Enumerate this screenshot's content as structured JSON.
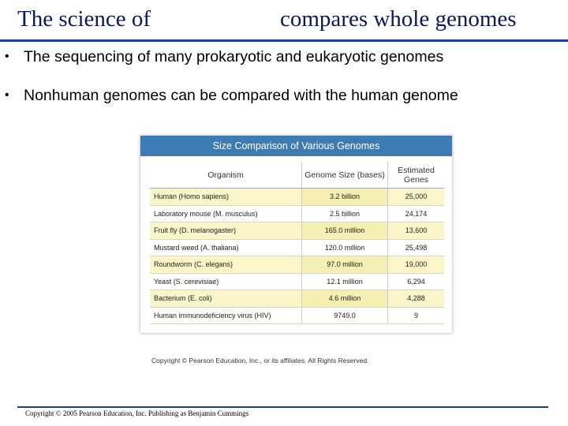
{
  "slide": {
    "title_left": "The science of",
    "title_right": "compares whole genomes",
    "bullets": [
      "The sequencing of many prokaryotic and eukaryotic genomes",
      "Nonhuman genomes can be compared with the human genome"
    ],
    "footer": "Copyright © 2005 Pearson Education, Inc. Publishing as Benjamin Cummings"
  },
  "figure": {
    "title": "Size Comparison of Various Genomes",
    "columns": [
      "Organism",
      "Genome Size (bases)",
      "Estimated Genes"
    ],
    "rows": [
      {
        "organism": "Human (Homo sapiens)",
        "size": "3.2 billion",
        "genes": "25,000"
      },
      {
        "organism": "Laboratory mouse (M. musculus)",
        "size": "2.5 billion",
        "genes": "24,174"
      },
      {
        "organism": "Fruit fly (D. melanogaster)",
        "size": "165.0 million",
        "genes": "13,600"
      },
      {
        "organism": "Mustard weed (A. thaliana)",
        "size": "120.0 million",
        "genes": "25,498"
      },
      {
        "organism": "Roundworm (C. elegans)",
        "size": "97.0 million",
        "genes": "19,000"
      },
      {
        "organism": "Yeast (S. cerevisiae)",
        "size": "12.1 million",
        "genes": "6,294"
      },
      {
        "organism": "Bacterium (E. coli)",
        "size": "4.6 million",
        "genes": "4,288"
      },
      {
        "organism": "Human immunodeficiency virus (HIV)",
        "size": "9749.0",
        "genes": "9"
      }
    ],
    "copyright": "Copyright © Pearson Education, Inc., or its affiliates.  All Rights Reserved."
  },
  "colors": {
    "title": "#0a1a5a",
    "rule": "#1e3f8f",
    "table_header": "#3d7bb5",
    "row_highlight": "#fbf6c9"
  }
}
